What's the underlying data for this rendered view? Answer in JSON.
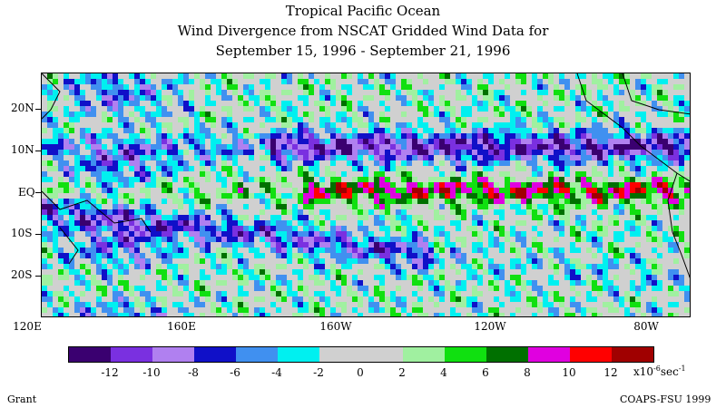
{
  "title": {
    "line1": "Tropical Pacific Ocean",
    "line2": "Wind Divergence from NSCAT Gridded Wind Data for",
    "line3": "September 15, 1996 - September 21, 1996"
  },
  "map": {
    "lon_range": [
      "120E",
      "70W"
    ],
    "lat_range": [
      "30S",
      "30N"
    ],
    "lat_labels": [
      "20N",
      "10N",
      "EQ",
      "10S",
      "20S"
    ],
    "lon_labels": [
      "120E",
      "160E",
      "160W",
      "120W",
      "80W"
    ]
  },
  "colorbar": {
    "colors": [
      "#3a0070",
      "#7a30e0",
      "#b080f0",
      "#1010c8",
      "#4090f0",
      "#00f0f0",
      "#d0d0d0",
      "#d0d0d0",
      "#a0f0a0",
      "#10e010",
      "#007000",
      "#e000e0",
      "#ff0000",
      "#a00000"
    ],
    "tick_labels": [
      "-12",
      "-10",
      "-8",
      "-6",
      "-4",
      "-2",
      "0",
      "2",
      "4",
      "6",
      "8",
      "10",
      "12"
    ],
    "unit_base": "x10",
    "unit_exp": "-6",
    "unit_tail": "sec",
    "unit_tail_exp": "-1"
  },
  "footer": {
    "left": "Grant",
    "right": "COAPS-FSU 1999"
  }
}
